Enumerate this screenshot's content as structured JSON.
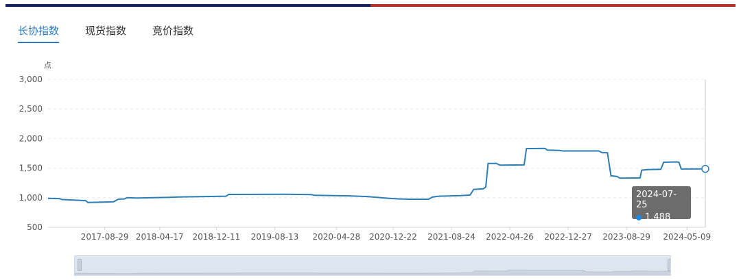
{
  "topbar": {
    "colors": [
      "#16205c",
      "#b5302b"
    ]
  },
  "tabs": [
    {
      "label": "长协指数",
      "active": true
    },
    {
      "label": "现货指数",
      "active": false
    },
    {
      "label": "竞价指数",
      "active": false
    }
  ],
  "chart_data": {
    "type": "line",
    "unit_label": "点",
    "ylim": [
      500,
      3000
    ],
    "yticks": [
      500,
      1000,
      1500,
      2000,
      2500,
      3000
    ],
    "ytick_labels": [
      "500",
      "1,000",
      "1,500",
      "2,000",
      "2,500",
      "3,000"
    ],
    "xticks": [
      "2017-08-29",
      "2018-04-17",
      "2018-12-11",
      "2019-08-13",
      "2020-04-28",
      "2020-12-22",
      "2021-08-24",
      "2022-04-26",
      "2022-12-27",
      "2023-08-29",
      "2024-05-09"
    ],
    "x_range": [
      "2017-01-03",
      "2024-07-25"
    ],
    "grid": true,
    "line_color": "#2a7db5",
    "series": [
      {
        "points": [
          [
            "2017-01-03",
            990
          ],
          [
            "2017-02-20",
            985
          ],
          [
            "2017-03-01",
            970
          ],
          [
            "2017-04-20",
            960
          ],
          [
            "2017-06-10",
            950
          ],
          [
            "2017-06-20",
            920
          ],
          [
            "2017-08-20",
            925
          ],
          [
            "2017-10-05",
            930
          ],
          [
            "2017-10-25",
            975
          ],
          [
            "2017-11-20",
            980
          ],
          [
            "2017-12-01",
            1000
          ],
          [
            "2018-01-10",
            995
          ],
          [
            "2018-05-15",
            1005
          ],
          [
            "2018-07-01",
            1012
          ],
          [
            "2018-10-01",
            1018
          ],
          [
            "2019-01-20",
            1025
          ],
          [
            "2019-02-01",
            1055
          ],
          [
            "2019-09-25",
            1058
          ],
          [
            "2020-01-15",
            1052
          ],
          [
            "2020-01-25",
            1040
          ],
          [
            "2020-07-01",
            1030
          ],
          [
            "2020-09-05",
            1020
          ],
          [
            "2020-12-05",
            990
          ],
          [
            "2021-01-12",
            980
          ],
          [
            "2021-03-01",
            975
          ],
          [
            "2021-05-20",
            975
          ],
          [
            "2021-06-05",
            1010
          ],
          [
            "2021-07-01",
            1025
          ],
          [
            "2021-10-01",
            1035
          ],
          [
            "2021-11-10",
            1045
          ],
          [
            "2021-11-25",
            1140
          ],
          [
            "2022-01-05",
            1150
          ],
          [
            "2022-01-15",
            1180
          ],
          [
            "2022-01-25",
            1580
          ],
          [
            "2022-03-01",
            1580
          ],
          [
            "2022-03-15",
            1550
          ],
          [
            "2022-06-25",
            1555
          ],
          [
            "2022-07-05",
            1830
          ],
          [
            "2022-09-20",
            1835
          ],
          [
            "2022-10-01",
            1805
          ],
          [
            "2022-11-20",
            1800
          ],
          [
            "2022-12-05",
            1790
          ],
          [
            "2023-05-05",
            1790
          ],
          [
            "2023-05-20",
            1760
          ],
          [
            "2023-06-10",
            1760
          ],
          [
            "2023-06-25",
            1370
          ],
          [
            "2023-07-20",
            1360
          ],
          [
            "2023-08-01",
            1330
          ],
          [
            "2023-10-25",
            1335
          ],
          [
            "2023-11-01",
            1465
          ],
          [
            "2023-11-25",
            1475
          ],
          [
            "2024-01-20",
            1480
          ],
          [
            "2024-02-01",
            1600
          ],
          [
            "2024-03-25",
            1605
          ],
          [
            "2024-04-05",
            1600
          ],
          [
            "2024-04-15",
            1485
          ],
          [
            "2024-07-25",
            1488
          ]
        ]
      }
    ],
    "tooltip": {
      "date": "2024-07-25",
      "value": "1,488"
    }
  }
}
